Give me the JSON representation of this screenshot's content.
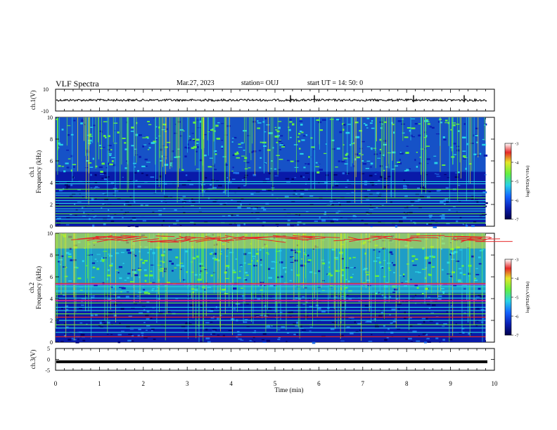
{
  "header": {
    "title": "VLF Spectra",
    "date": "Mar.27, 2023",
    "station": "station= OUJ",
    "start": "start  UT =   14: 50: 0"
  },
  "chart_data": [
    {
      "type": "line",
      "name": "ch1-waveform",
      "ylabel": "ch.1(V)",
      "ylim": [
        -10,
        10
      ],
      "yticks": [
        "10",
        "-10"
      ],
      "xlim": [
        0,
        10
      ],
      "level": 0,
      "description_of_trace": "noisy waveform near 0 V with occasional spikes"
    },
    {
      "type": "heatmap",
      "name": "ch1-spectrogram",
      "ylabel": "ch.1 Frequency (kHz)",
      "ylim": [
        0,
        10
      ],
      "yticks": [
        "0",
        "2",
        "4",
        "6",
        "8",
        "10"
      ],
      "xlim": [
        0,
        9.8
      ],
      "colorbar": {
        "label": "log(PSD)(V²/Hz)",
        "range": [
          -7,
          -3
        ],
        "ticks": [
          "-3",
          "-4",
          "-5",
          "-6",
          "-7"
        ]
      },
      "bands_khz": [
        0.3,
        0.65,
        0.9,
        1.15,
        1.4,
        1.6,
        1.85,
        2.1,
        2.35,
        2.6,
        2.85,
        3.05,
        3.4,
        3.9,
        4.1
      ],
      "noisy_above_khz": 5
    },
    {
      "type": "heatmap",
      "name": "ch2-spectrogram",
      "ylabel": "ch.2 Frequency (kHz)",
      "ylim": [
        0,
        10
      ],
      "yticks": [
        "0",
        "2",
        "4",
        "6",
        "8",
        "10"
      ],
      "xlim": [
        0,
        9.8
      ],
      "colorbar": {
        "label": "log(PSD)(V²/Hz)",
        "range": [
          -7,
          -3
        ],
        "ticks": [
          "-3",
          "-4",
          "-5",
          "-6",
          "-7"
        ]
      },
      "bands_khz": [
        0.5,
        0.9,
        1.3,
        1.6,
        2.0,
        2.3,
        2.6,
        2.9,
        3.2,
        3.6,
        3.85,
        4.05,
        4.4,
        4.7,
        5.1,
        5.4
      ],
      "noisy_above_khz": 4.5
    },
    {
      "type": "line",
      "name": "ch3-waveform",
      "ylabel": "ch.3(V)",
      "ylim": [
        -5,
        5
      ],
      "yticks": [
        "5",
        "0",
        "-5"
      ],
      "xlim": [
        0,
        10
      ],
      "level": -1.1
    }
  ],
  "xaxis": {
    "label": "Time (min)",
    "ticks": [
      "0",
      "1",
      "2",
      "3",
      "4",
      "5",
      "6",
      "7",
      "8",
      "9",
      "10"
    ],
    "range": [
      0,
      10
    ]
  },
  "colors": {
    "deep": "#00006e",
    "blue": "#0a1eb4",
    "mid": "#1e6ee6",
    "cyan": "#28d2e6",
    "green": "#64f040",
    "yellow": "#e6e628",
    "red": "#e62828",
    "magenta": "#c828c8"
  }
}
